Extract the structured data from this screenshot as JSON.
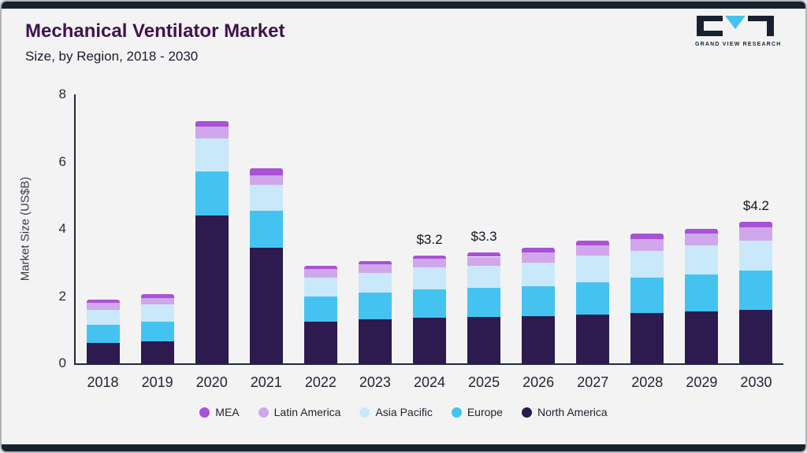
{
  "header": {
    "title": "Mechanical Ventilator Market",
    "subtitle": "Size, by Region, 2018 - 2030",
    "logo_text": "GRAND VIEW RESEARCH"
  },
  "chart_data": {
    "type": "bar",
    "stacked": true,
    "title": "Mechanical Ventilator Market Size, by Region, 2018 - 2030",
    "ylabel": "Market Size (US$B)",
    "ylim": [
      0,
      8
    ],
    "yticks": [
      0,
      2,
      4,
      6,
      8
    ],
    "categories": [
      "2018",
      "2019",
      "2020",
      "2021",
      "2022",
      "2023",
      "2024",
      "2025",
      "2026",
      "2027",
      "2028",
      "2029",
      "2030"
    ],
    "series": [
      {
        "name": "North America",
        "color": "#2d1a4e",
        "values": [
          0.6,
          0.65,
          4.4,
          3.45,
          1.25,
          1.3,
          1.35,
          1.38,
          1.4,
          1.45,
          1.5,
          1.55,
          1.6
        ]
      },
      {
        "name": "Europe",
        "color": "#45c3f0",
        "values": [
          0.55,
          0.6,
          1.3,
          1.1,
          0.75,
          0.8,
          0.85,
          0.87,
          0.9,
          0.97,
          1.05,
          1.1,
          1.15
        ]
      },
      {
        "name": "Asia Pacific",
        "color": "#c9e9fa",
        "values": [
          0.45,
          0.5,
          1.0,
          0.75,
          0.55,
          0.6,
          0.65,
          0.65,
          0.7,
          0.78,
          0.8,
          0.85,
          0.9
        ]
      },
      {
        "name": "Latin America",
        "color": "#d0a7ea",
        "values": [
          0.2,
          0.2,
          0.35,
          0.3,
          0.25,
          0.25,
          0.25,
          0.27,
          0.3,
          0.3,
          0.35,
          0.35,
          0.4
        ]
      },
      {
        "name": "MEA",
        "color": "#a852d6",
        "values": [
          0.1,
          0.1,
          0.15,
          0.2,
          0.1,
          0.1,
          0.1,
          0.13,
          0.15,
          0.15,
          0.15,
          0.15,
          0.15
        ]
      }
    ],
    "totals": [
      1.9,
      2.05,
      7.2,
      5.8,
      2.9,
      3.05,
      3.2,
      3.3,
      3.45,
      3.65,
      3.85,
      4.0,
      4.2
    ],
    "annotations": [
      {
        "category": "2024",
        "text": "$3.2"
      },
      {
        "category": "2025",
        "text": "$3.3"
      },
      {
        "category": "2030",
        "text": "$4.2"
      }
    ],
    "legend": [
      "MEA",
      "Latin America",
      "Asia Pacific",
      "Europe",
      "North America"
    ],
    "legend_position": "bottom",
    "grid": false
  }
}
